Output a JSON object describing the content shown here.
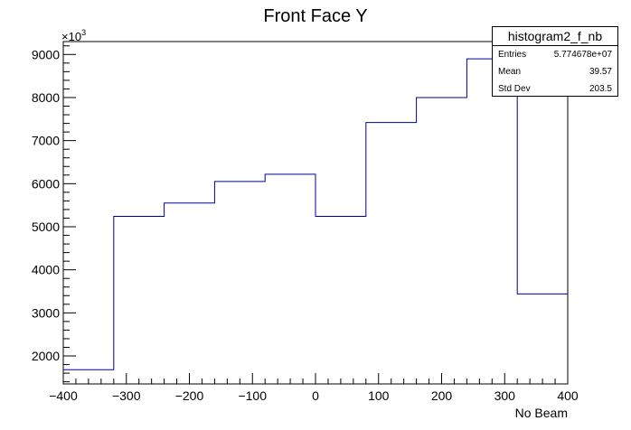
{
  "chart_data": {
    "type": "histogram",
    "title": "Front Face Y",
    "xlabel": "No Beam",
    "ylabel": "",
    "y_exponent_label": "×10",
    "y_exponent_power": "3",
    "xlim": [
      -400,
      400
    ],
    "ylim": [
      1350,
      9300
    ],
    "x_ticks": [
      "−400",
      "−300",
      "−200",
      "−100",
      "0",
      "100",
      "200",
      "300",
      "400"
    ],
    "y_ticks": [
      "2000",
      "3000",
      "4000",
      "5000",
      "6000",
      "7000",
      "8000",
      "9000"
    ],
    "bin_edges": [
      -400,
      -320,
      -240,
      -160,
      -80,
      0,
      80,
      160,
      240,
      320,
      400
    ],
    "values": [
      1680,
      5240,
      5550,
      6050,
      6220,
      5240,
      7420,
      8000,
      8900,
      3440
    ],
    "line_color": "#000099",
    "grid": false
  },
  "stats": {
    "name": "histogram2_f_nb",
    "rows": [
      {
        "label": "Entries",
        "value": "5.774678e+07"
      },
      {
        "label": "Mean",
        "value": "39.57"
      },
      {
        "label": "Std Dev",
        "value": "203.5"
      }
    ]
  }
}
